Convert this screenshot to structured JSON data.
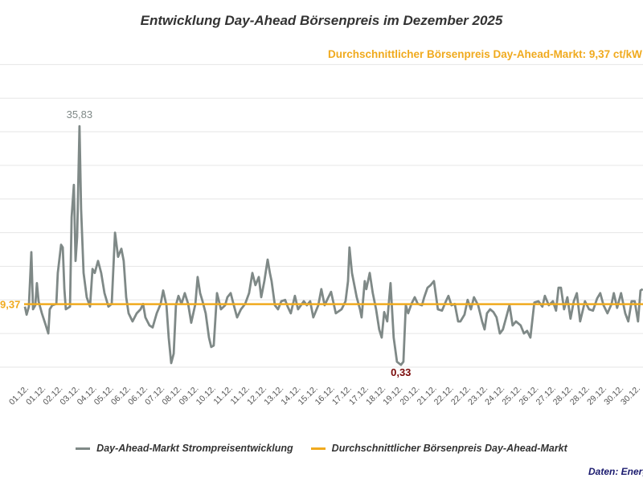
{
  "chart_data": {
    "type": "line",
    "title": "Entwicklung Day-Ahead Börsenpreis im Dezember 2025",
    "average_note": "Durchschnittlicher Börsenpreis Day-Ahead-Markt: 9,37 ct/kW",
    "average_value": 9.37,
    "average_label": "9,37",
    "max_label": "35,83",
    "max_value": 35.83,
    "min_label": "0,33",
    "min_value": 0.33,
    "ylim": [
      0,
      45
    ],
    "y_grid_step": 5,
    "grid": true,
    "xlim_day": [
      1,
      31
    ],
    "x_tick_labels": [
      "01.12.",
      "01.12.",
      "02.12.",
      "03.12.",
      "04.12.",
      "05.12.",
      "06.12.",
      "06.12.",
      "07.12.",
      "08.12.",
      "09.12.",
      "10.12.",
      "11.12.",
      "11.12.",
      "12.12.",
      "13.12.",
      "14.12.",
      "15.12.",
      "16.12.",
      "17.12.",
      "17.12.",
      "18.12.",
      "19.12.",
      "20.12.",
      "21.12.",
      "22.12.",
      "22.12.",
      "23.12.",
      "24.12.",
      "25.12.",
      "26.12.",
      "27.12.",
      "28.12.",
      "28.12.",
      "29.12.",
      "30.12.",
      "30.12."
    ],
    "legend_position": "bottom",
    "series": [
      {
        "name": "Day-Ahead-Markt Strompreisentwicklung",
        "color": "#7f8987",
        "points": [
          [
            1.04,
            9.0
          ],
          [
            1.12,
            7.8
          ],
          [
            1.23,
            9.0
          ],
          [
            1.35,
            17.1
          ],
          [
            1.43,
            8.6
          ],
          [
            1.54,
            9.2
          ],
          [
            1.62,
            12.5
          ],
          [
            1.7,
            9.8
          ],
          [
            1.86,
            8.0
          ],
          [
            2.05,
            6.2
          ],
          [
            2.17,
            5.0
          ],
          [
            2.24,
            8.6
          ],
          [
            2.36,
            9.2
          ],
          [
            2.56,
            9.4
          ],
          [
            2.63,
            14.0
          ],
          [
            2.79,
            18.2
          ],
          [
            2.87,
            17.8
          ],
          [
            2.95,
            11.6
          ],
          [
            3.02,
            8.6
          ],
          [
            3.22,
            9.0
          ],
          [
            3.3,
            22.3
          ],
          [
            3.41,
            27.1
          ],
          [
            3.49,
            15.8
          ],
          [
            3.57,
            19.4
          ],
          [
            3.68,
            35.83
          ],
          [
            3.76,
            23.5
          ],
          [
            3.88,
            14.0
          ],
          [
            4.03,
            10.4
          ],
          [
            4.19,
            9.0
          ],
          [
            4.31,
            14.6
          ],
          [
            4.42,
            14.0
          ],
          [
            4.58,
            15.8
          ],
          [
            4.73,
            14.0
          ],
          [
            4.89,
            11.0
          ],
          [
            5.08,
            9.0
          ],
          [
            5.24,
            9.4
          ],
          [
            5.4,
            20.0
          ],
          [
            5.55,
            16.4
          ],
          [
            5.71,
            17.6
          ],
          [
            5.82,
            15.8
          ],
          [
            5.94,
            10.4
          ],
          [
            6.06,
            8.0
          ],
          [
            6.25,
            6.8
          ],
          [
            6.45,
            8.0
          ],
          [
            6.64,
            8.6
          ],
          [
            6.76,
            9.4
          ],
          [
            6.87,
            7.4
          ],
          [
            7.07,
            6.2
          ],
          [
            7.22,
            5.9
          ],
          [
            7.42,
            8.0
          ],
          [
            7.61,
            9.4
          ],
          [
            7.73,
            11.4
          ],
          [
            7.89,
            9.2
          ],
          [
            8.0,
            4.4
          ],
          [
            8.12,
            0.6
          ],
          [
            8.24,
            2.0
          ],
          [
            8.35,
            9.2
          ],
          [
            8.47,
            10.6
          ],
          [
            8.62,
            9.4
          ],
          [
            8.78,
            11.0
          ],
          [
            8.94,
            9.4
          ],
          [
            9.09,
            6.6
          ],
          [
            9.29,
            9.4
          ],
          [
            9.4,
            13.4
          ],
          [
            9.52,
            11.0
          ],
          [
            9.64,
            9.8
          ],
          [
            9.79,
            8.0
          ],
          [
            9.95,
            4.4
          ],
          [
            10.06,
            3.0
          ],
          [
            10.18,
            3.2
          ],
          [
            10.34,
            11.0
          ],
          [
            10.53,
            8.6
          ],
          [
            10.73,
            9.2
          ],
          [
            10.84,
            10.4
          ],
          [
            11.0,
            11.0
          ],
          [
            11.15,
            9.2
          ],
          [
            11.31,
            7.4
          ],
          [
            11.5,
            8.6
          ],
          [
            11.7,
            9.4
          ],
          [
            11.89,
            11.0
          ],
          [
            12.05,
            14.0
          ],
          [
            12.2,
            12.2
          ],
          [
            12.36,
            13.4
          ],
          [
            12.48,
            10.4
          ],
          [
            12.63,
            12.8
          ],
          [
            12.79,
            16.0
          ],
          [
            12.9,
            14.0
          ],
          [
            12.98,
            12.8
          ],
          [
            13.14,
            9.2
          ],
          [
            13.29,
            8.6
          ],
          [
            13.45,
            9.8
          ],
          [
            13.64,
            10.0
          ],
          [
            13.76,
            9.0
          ],
          [
            13.91,
            8.0
          ],
          [
            14.11,
            10.6
          ],
          [
            14.26,
            8.6
          ],
          [
            14.54,
            9.8
          ],
          [
            14.69,
            9.2
          ],
          [
            14.85,
            9.8
          ],
          [
            15.0,
            7.4
          ],
          [
            15.24,
            9.2
          ],
          [
            15.39,
            11.6
          ],
          [
            15.55,
            9.2
          ],
          [
            15.7,
            10.2
          ],
          [
            15.86,
            11.2
          ],
          [
            16.09,
            8.0
          ],
          [
            16.37,
            8.6
          ],
          [
            16.56,
            9.8
          ],
          [
            16.68,
            12.8
          ],
          [
            16.75,
            17.8
          ],
          [
            16.87,
            14.0
          ],
          [
            17.1,
            10.4
          ],
          [
            17.26,
            8.6
          ],
          [
            17.34,
            7.4
          ],
          [
            17.49,
            12.8
          ],
          [
            17.57,
            11.6
          ],
          [
            17.73,
            14.0
          ],
          [
            17.88,
            11.0
          ],
          [
            18.04,
            8.6
          ],
          [
            18.19,
            5.6
          ],
          [
            18.31,
            4.4
          ],
          [
            18.43,
            8.2
          ],
          [
            18.58,
            6.8
          ],
          [
            18.74,
            12.5
          ],
          [
            18.89,
            4.4
          ],
          [
            19.05,
            0.8
          ],
          [
            19.24,
            0.33
          ],
          [
            19.36,
            0.8
          ],
          [
            19.48,
            9.2
          ],
          [
            19.59,
            8.0
          ],
          [
            19.75,
            9.4
          ],
          [
            19.91,
            10.4
          ],
          [
            20.06,
            9.4
          ],
          [
            20.26,
            9.2
          ],
          [
            20.37,
            10.4
          ],
          [
            20.53,
            11.8
          ],
          [
            20.68,
            12.2
          ],
          [
            20.84,
            12.8
          ],
          [
            21.03,
            8.6
          ],
          [
            21.23,
            8.4
          ],
          [
            21.42,
            9.8
          ],
          [
            21.54,
            10.6
          ],
          [
            21.69,
            9.2
          ],
          [
            21.85,
            9.4
          ],
          [
            22.01,
            6.8
          ],
          [
            22.12,
            6.8
          ],
          [
            22.32,
            7.8
          ],
          [
            22.47,
            10.0
          ],
          [
            22.63,
            8.6
          ],
          [
            22.78,
            10.4
          ],
          [
            22.98,
            9.2
          ],
          [
            23.17,
            6.8
          ],
          [
            23.29,
            5.6
          ],
          [
            23.41,
            8.0
          ],
          [
            23.56,
            8.6
          ],
          [
            23.72,
            8.2
          ],
          [
            23.87,
            7.4
          ],
          [
            24.03,
            5.0
          ],
          [
            24.18,
            5.6
          ],
          [
            24.34,
            7.4
          ],
          [
            24.5,
            9.2
          ],
          [
            24.65,
            6.2
          ],
          [
            24.81,
            6.8
          ],
          [
            25.04,
            6.2
          ],
          [
            25.2,
            5.0
          ],
          [
            25.35,
            5.4
          ],
          [
            25.51,
            4.4
          ],
          [
            25.7,
            9.6
          ],
          [
            25.9,
            9.8
          ],
          [
            26.09,
            9.0
          ],
          [
            26.21,
            10.6
          ],
          [
            26.4,
            9.2
          ],
          [
            26.6,
            9.8
          ],
          [
            26.75,
            8.4
          ],
          [
            26.87,
            11.8
          ],
          [
            26.99,
            11.8
          ],
          [
            27.14,
            8.6
          ],
          [
            27.3,
            10.4
          ],
          [
            27.45,
            7.2
          ],
          [
            27.61,
            9.8
          ],
          [
            27.76,
            11.0
          ],
          [
            27.92,
            6.8
          ],
          [
            28.15,
            9.8
          ],
          [
            28.35,
            8.6
          ],
          [
            28.54,
            8.4
          ],
          [
            28.74,
            10.2
          ],
          [
            28.89,
            11.0
          ],
          [
            29.05,
            9.2
          ],
          [
            29.24,
            8.0
          ],
          [
            29.44,
            9.4
          ],
          [
            29.55,
            11.0
          ],
          [
            29.71,
            8.8
          ],
          [
            29.9,
            11.0
          ],
          [
            30.1,
            8.0
          ],
          [
            30.25,
            6.8
          ],
          [
            30.41,
            9.8
          ],
          [
            30.56,
            9.8
          ],
          [
            30.72,
            6.8
          ],
          [
            30.84,
            11.4
          ],
          [
            30.95,
            11.6
          ]
        ]
      },
      {
        "name": "Durchschnittlicher Börsenpreis Day-Ahead-Markt",
        "color": "#f0aa1e"
      }
    ],
    "colors": {
      "min_label": "#7a0a0a",
      "max_label": "#7f8987",
      "grid": "#e6e6e6"
    }
  },
  "source": "Daten: Energ"
}
